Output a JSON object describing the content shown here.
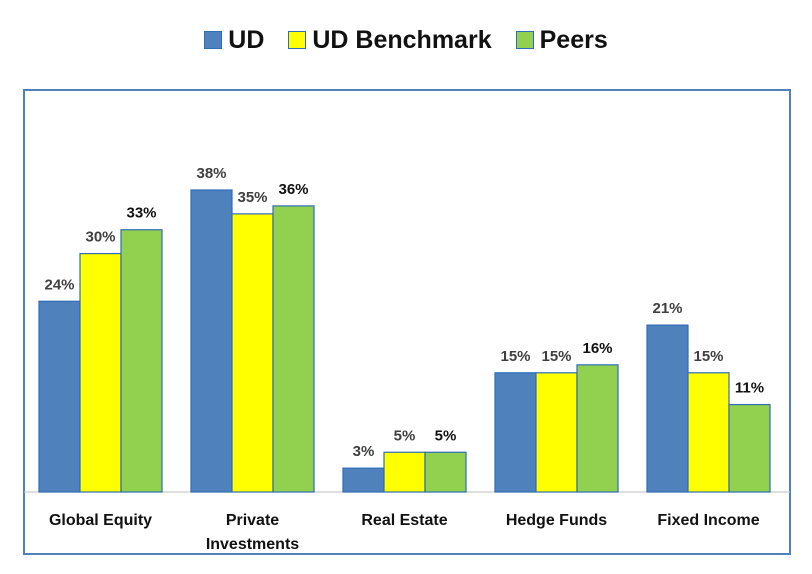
{
  "chart_data": {
    "type": "bar",
    "title": "",
    "xlabel": "",
    "ylabel": "",
    "ylim": [
      0,
      42
    ],
    "categories": [
      [
        "Global Equity"
      ],
      [
        "Private",
        "Investments"
      ],
      [
        "Real Estate"
      ],
      [
        "Hedge Funds"
      ],
      [
        "Fixed Income"
      ]
    ],
    "series": [
      {
        "name": "UD",
        "color": "#4f81bd",
        "label_color": "#404040",
        "values": [
          24,
          38,
          3,
          15,
          21
        ],
        "labels": [
          "24%",
          "38%",
          "3%",
          "15%",
          "21%"
        ]
      },
      {
        "name": "UD Benchmark",
        "color": "#ffff00",
        "label_color": "#404040",
        "values": [
          30,
          35,
          5,
          15,
          15
        ],
        "labels": [
          "30%",
          "35%",
          "5%",
          "15%",
          "15%"
        ]
      },
      {
        "name": "Peers",
        "color": "#92d050",
        "label_color": "#111111",
        "values": [
          33,
          36,
          5,
          16,
          11
        ],
        "labels": [
          "33%",
          "36%",
          "5%",
          "16%",
          "11%"
        ]
      }
    ],
    "legend_position": "top-center",
    "grid": false,
    "frame_color": "#4f81bd"
  }
}
